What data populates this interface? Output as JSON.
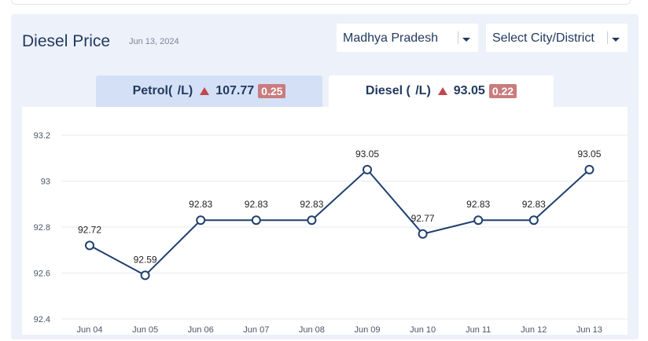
{
  "header": {
    "title": "Diesel Price",
    "date": "Jun 13, 2024"
  },
  "filters": {
    "state": "Madhya Pradesh",
    "city": "Select City/District"
  },
  "tabs": {
    "petrol": {
      "label": "Petrol(  /L)",
      "price": "107.77",
      "change": "0.25",
      "selected": false
    },
    "diesel": {
      "label": "Diesel (  /L)",
      "price": "93.05",
      "change": "0.22",
      "selected": true
    }
  },
  "colors": {
    "line": "#1f3f6e",
    "up_badge": "#c97c7e",
    "up_arrow": "#c0484c"
  },
  "chart_data": {
    "type": "line",
    "categories": [
      "Jun 04",
      "Jun 05",
      "Jun 06",
      "Jun 07",
      "Jun 08",
      "Jun 09",
      "Jun 10",
      "Jun 11",
      "Jun 12",
      "Jun 13"
    ],
    "values": [
      92.72,
      92.59,
      92.83,
      92.83,
      92.83,
      93.05,
      92.77,
      92.83,
      92.83,
      93.05
    ],
    "yticks": [
      "93.2",
      "93",
      "92.8",
      "92.6",
      "92.4"
    ],
    "ylim": [
      92.4,
      93.2
    ],
    "grid": true,
    "title": "",
    "xlabel": "",
    "ylabel": ""
  }
}
